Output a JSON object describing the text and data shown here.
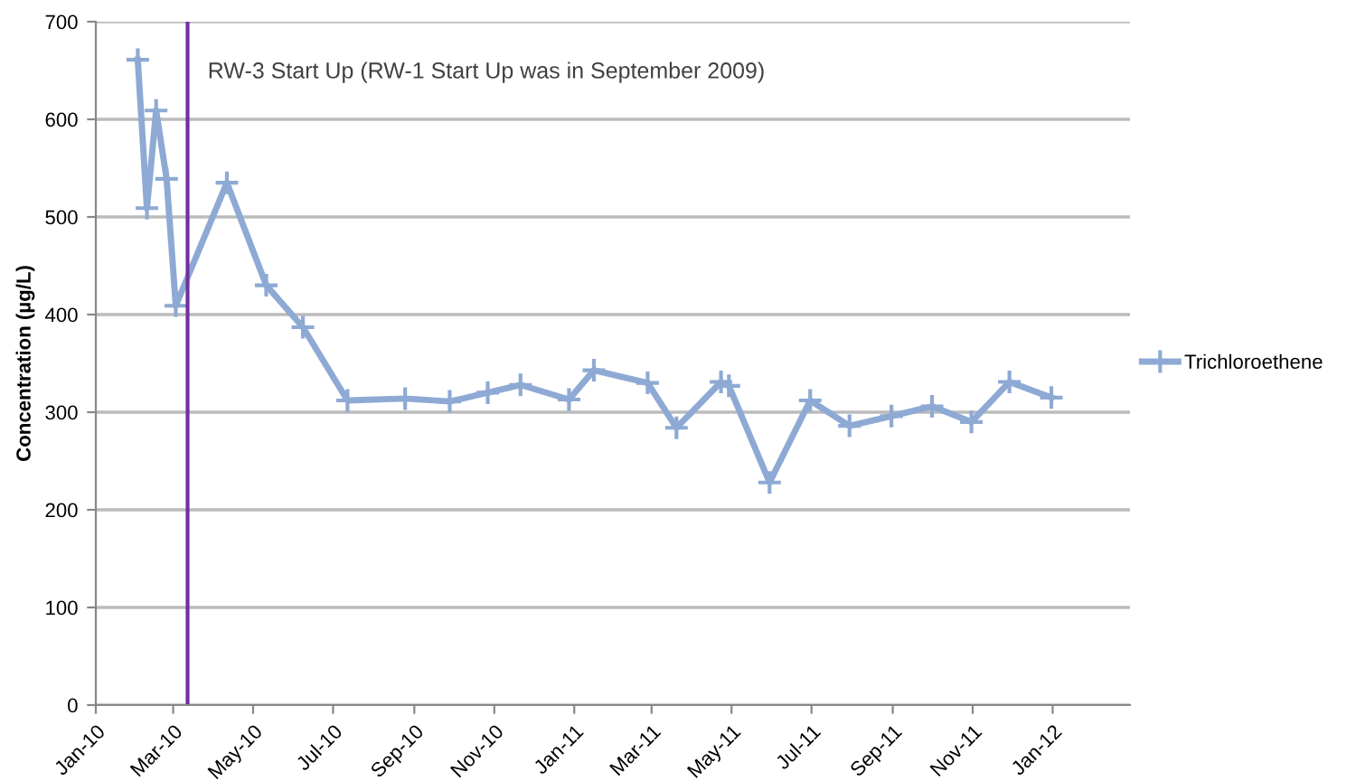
{
  "chart_data": {
    "type": "line",
    "ylabel": "Concentration (µg/L)",
    "x": [
      "2010-02-02",
      "2010-02-09",
      "2010-02-16",
      "2010-02-24",
      "2010-03-03",
      "2010-04-11",
      "2010-05-11",
      "2010-06-08",
      "2010-07-12",
      "2010-08-25",
      "2010-09-28",
      "2010-10-27",
      "2010-11-21",
      "2010-12-28",
      "2011-01-16",
      "2011-02-26",
      "2011-03-20",
      "2011-04-23",
      "2011-04-29",
      "2011-05-30",
      "2011-06-30",
      "2011-07-30",
      "2011-08-31",
      "2011-10-01",
      "2011-10-31",
      "2011-11-29",
      "2011-12-31"
    ],
    "series": [
      {
        "name": "Trichloroethene",
        "color": "#8eaad4",
        "values": [
          661,
          509,
          609,
          539,
          409,
          535,
          430,
          387,
          312,
          314,
          311,
          320,
          328,
          313,
          343,
          330,
          284,
          331,
          327,
          228,
          312,
          286,
          296,
          306,
          290,
          331,
          315
        ]
      }
    ],
    "marker": "cross",
    "line_style": "solid",
    "grid": "y",
    "legend": "right",
    "ylim": [
      0,
      700
    ],
    "yticks": [
      0,
      100,
      200,
      300,
      400,
      500,
      600,
      700
    ],
    "xlim": [
      "2010-01-01",
      "2012-02-29"
    ],
    "xticks": [
      {
        "value": "2010-01-01",
        "label": "Jan-10"
      },
      {
        "value": "2010-03-01",
        "label": "Mar-10"
      },
      {
        "value": "2010-05-01",
        "label": "May-10"
      },
      {
        "value": "2010-07-01",
        "label": "Jul-10"
      },
      {
        "value": "2010-09-01",
        "label": "Sep-10"
      },
      {
        "value": "2010-11-01",
        "label": "Nov-10"
      },
      {
        "value": "2011-01-01",
        "label": "Jan-11"
      },
      {
        "value": "2011-03-01",
        "label": "Mar-11"
      },
      {
        "value": "2011-05-01",
        "label": "May-11"
      },
      {
        "value": "2011-07-01",
        "label": "Jul-11"
      },
      {
        "value": "2011-09-01",
        "label": "Sep-11"
      },
      {
        "value": "2011-11-01",
        "label": "Nov-11"
      },
      {
        "value": "2012-01-01",
        "label": "Jan-12"
      }
    ],
    "ref_lines": [
      {
        "axis": "x",
        "value": "2010-03-12",
        "label": "RW-3 Start Up (RW-1 Start Up was in September 2009)",
        "color": "#7030a0"
      }
    ]
  }
}
